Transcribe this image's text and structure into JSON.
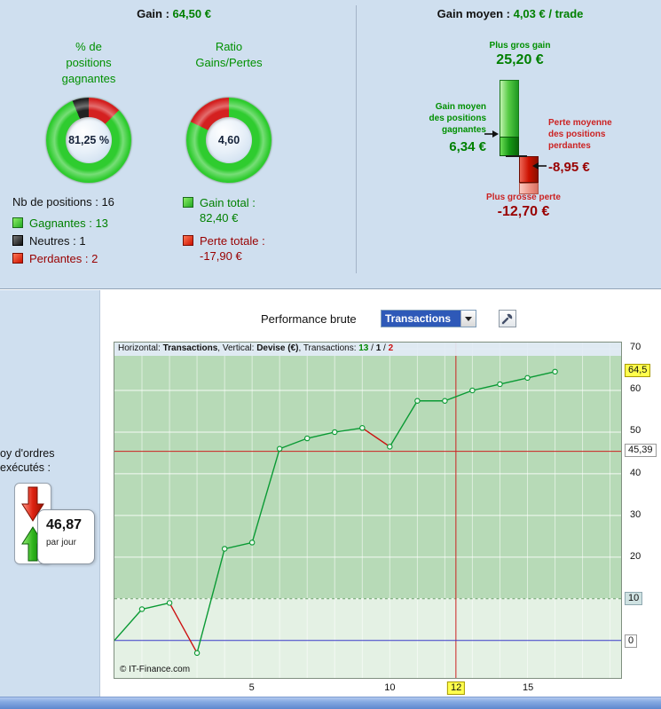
{
  "top": {
    "gain_label": "Gain :",
    "gain_value": "64,50 €",
    "winners_donut": {
      "title": "% de positions gagnantes",
      "value": "81,25 %",
      "segments": [
        {
          "name": "perdantes",
          "color": "#d42020",
          "pct": 12.5
        },
        {
          "name": "gagnantes",
          "color": "#2fcc2f",
          "pct": 81.25
        },
        {
          "name": "neutres",
          "color": "#222222",
          "pct": 6.25
        }
      ]
    },
    "ratio_donut": {
      "title": "Ratio Gains/Pertes",
      "value": "4,60",
      "segments": [
        {
          "name": "gains",
          "color": "#2fcc2f",
          "pct": 82.15
        },
        {
          "name": "pertes",
          "color": "#d42020",
          "pct": 17.85
        }
      ]
    },
    "positions_legend": {
      "title": "Nb de positions : 16",
      "items": [
        {
          "label": "Gagnantes : 13",
          "color": "green"
        },
        {
          "label": "Neutres : 1",
          "color": "black"
        },
        {
          "label": "Perdantes : 2",
          "color": "red"
        }
      ]
    },
    "totals_legend": [
      {
        "label": "Gain total :",
        "value": "82,40 €",
        "color": "green"
      },
      {
        "label": "Perte totale :",
        "value": "-17,90 €",
        "color": "red"
      }
    ],
    "right": {
      "title_label": "Gain moyen :",
      "title_value": "4,03 € / trade",
      "max_gain_label": "Plus gros gain",
      "max_gain_value": "25,20 €",
      "avg_win_label": "Gain moyen des positions gagnantes",
      "avg_win_value": "6,34 €",
      "avg_loss_label": "Perte moyenne des positions perdantes",
      "avg_loss_value": "-8,95 €",
      "max_loss_label": "Plus grosse perte",
      "max_loss_value": "-12,70 €",
      "bars": {
        "max_gain": 25.2,
        "avg_win": 6.34,
        "avg_loss": 8.95,
        "max_loss": 12.7
      }
    }
  },
  "sidebar": {
    "orders_line1": "oy d'ordres",
    "orders_line2": "exécutés :",
    "orders_value": "46,87",
    "orders_unit": "par jour"
  },
  "perf": {
    "header_label": "Performance brute",
    "select_value": "Transactions",
    "info": {
      "part1": "Horizontal: ",
      "part2": "Transactions",
      "part3": ", Vertical: ",
      "part4": "Devise (€)",
      "part5": ", Transactions: ",
      "wins": "13",
      "sep1": " / ",
      "neutral": "1",
      "sep2": " / ",
      "losses": "2"
    },
    "copyright": "© IT-Finance.com",
    "chart_data": {
      "type": "line",
      "title": "Performance brute",
      "xlabel": "Transactions",
      "ylabel": "Devise (€)",
      "x": [
        0,
        1,
        2,
        3,
        4,
        5,
        6,
        7,
        8,
        9,
        10,
        11,
        12,
        13,
        14,
        15,
        16
      ],
      "y": [
        0,
        7.5,
        9,
        -3,
        22,
        23.5,
        46,
        48.5,
        50,
        51,
        46.5,
        57.5,
        57.5,
        60,
        61.5,
        63,
        64.5
      ],
      "loss_segments": [
        3,
        10
      ],
      "xlim": [
        0,
        18.4
      ],
      "ylim": [
        -9,
        71.5
      ],
      "yticks": [
        20,
        30,
        40,
        50,
        60,
        70
      ],
      "xticks": [
        5,
        10,
        15
      ],
      "grid": true,
      "threshold": 10,
      "avg_line": 45.39,
      "current_x": 12.4,
      "zero_line": 0,
      "y_badges": [
        {
          "label": "64,5",
          "value": 64.5,
          "kind": "yellow"
        },
        {
          "label": "45,39",
          "value": 45.39,
          "kind": "white"
        },
        {
          "label": "10",
          "value": 10,
          "kind": "teal"
        },
        {
          "label": "0",
          "value": 0,
          "kind": "white"
        }
      ],
      "x_badges": [
        {
          "label": "12",
          "value": 12.4,
          "kind": "yellow"
        }
      ],
      "colors": {
        "line": "#0a9a34",
        "loss": "#cc1111",
        "marker_fill": "#eef8ee",
        "avg_line": "#cc2222",
        "current_line": "#cc2222",
        "zero_line": "#3a3ac8",
        "bg_upper": "#b7dab7",
        "bg_lower": "#e4f1e4",
        "grid": "#ffffff",
        "threshold_line": "#6aa06a"
      }
    }
  }
}
